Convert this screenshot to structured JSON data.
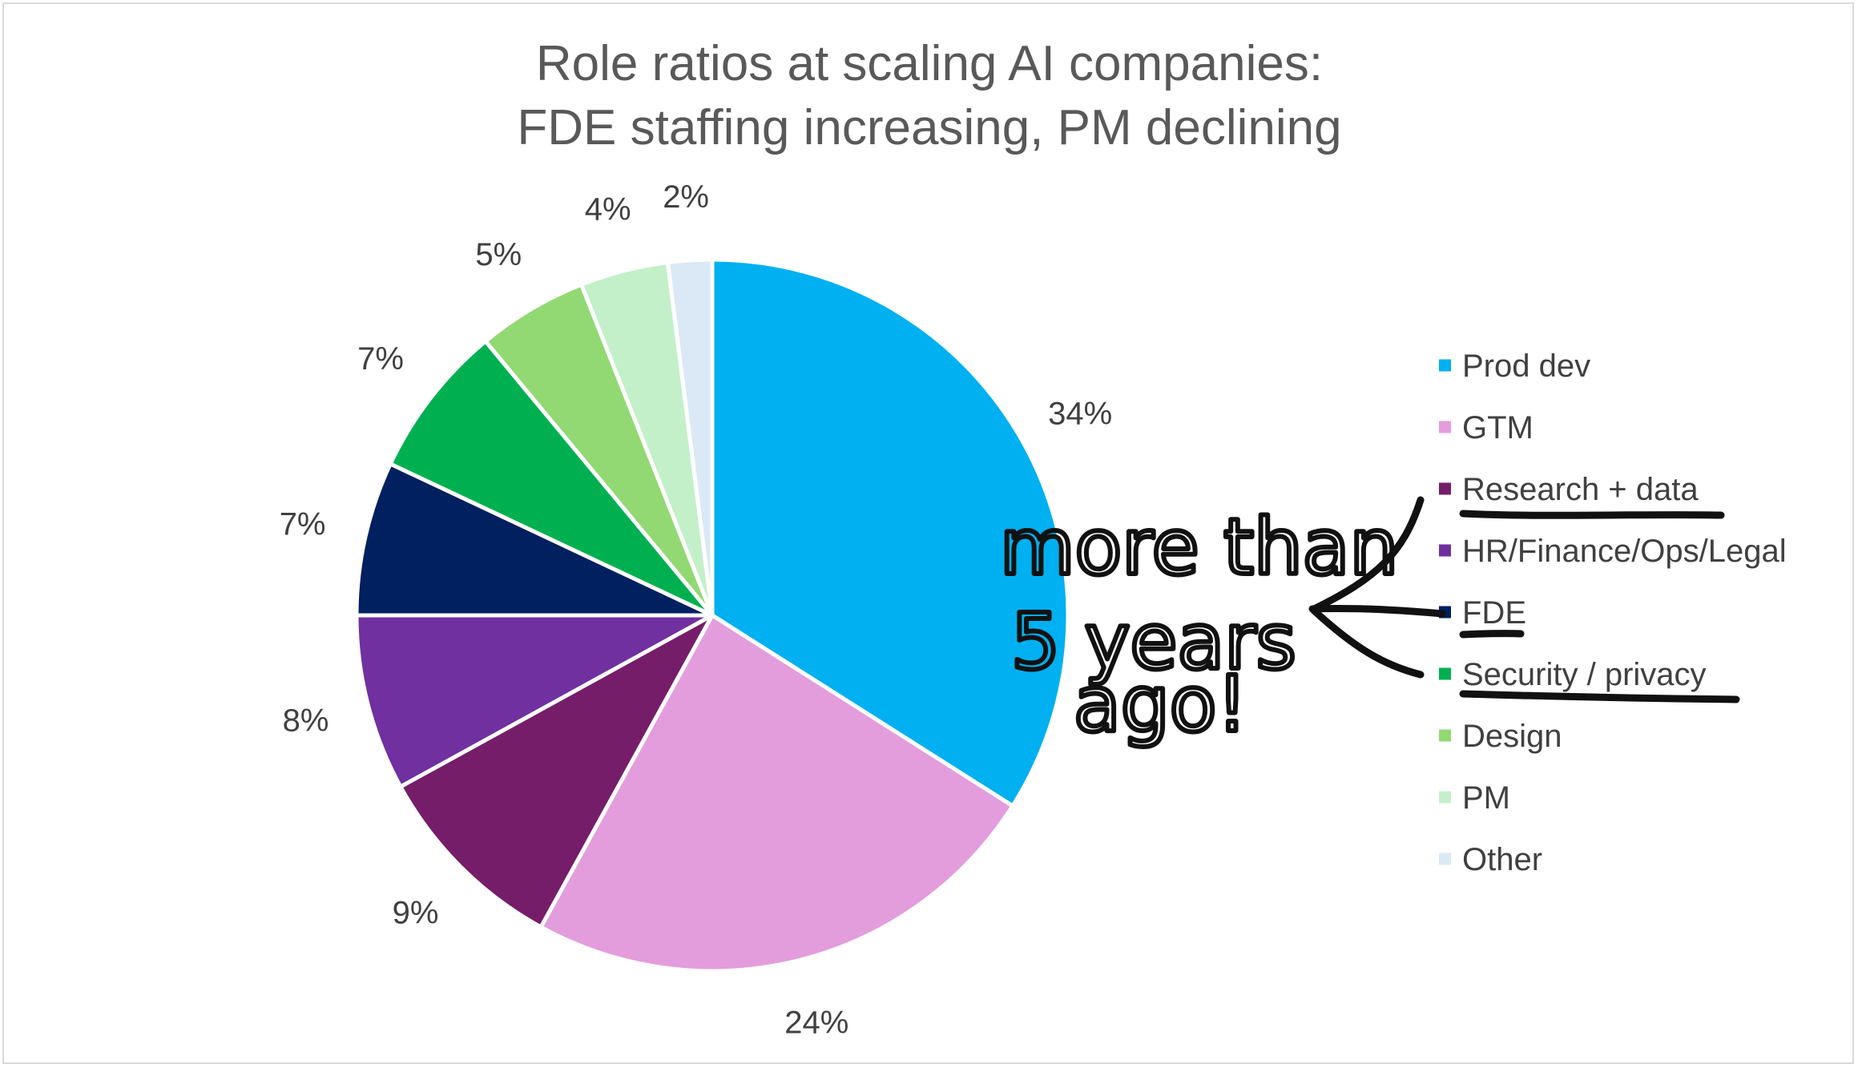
{
  "chart_data": {
    "type": "pie",
    "title_lines": [
      "Role ratios at scaling AI companies:",
      "FDE staffing increasing, PM declining"
    ],
    "slices": [
      {
        "name": "Prod dev",
        "value": 34,
        "label": "34%",
        "color": "#00b0f0"
      },
      {
        "name": "GTM",
        "value": 24,
        "label": "24%",
        "color": "#e39ddc"
      },
      {
        "name": "Research + data",
        "value": 9,
        "label": "9%",
        "color": "#761d69"
      },
      {
        "name": "HR/Finance/Ops/Legal",
        "value": 8,
        "label": "8%",
        "color": "#7030a0"
      },
      {
        "name": "FDE",
        "value": 7,
        "label": "7%",
        "color": "#002060"
      },
      {
        "name": "Security / privacy",
        "value": 7,
        "label": "7%",
        "color": "#00b050"
      },
      {
        "name": "Design",
        "value": 5,
        "label": "5%",
        "color": "#92d973"
      },
      {
        "name": "PM",
        "value": 4,
        "label": "4%",
        "color": "#c3f0c9"
      },
      {
        "name": "Other",
        "value": 2,
        "label": "2%",
        "color": "#dbe9f7"
      }
    ],
    "legend_position": "right"
  },
  "annotation": {
    "lines": [
      "more than",
      "5 years",
      "ago!"
    ],
    "underlined_legend_entries": [
      "Research + data",
      "FDE",
      "Security / privacy"
    ]
  }
}
